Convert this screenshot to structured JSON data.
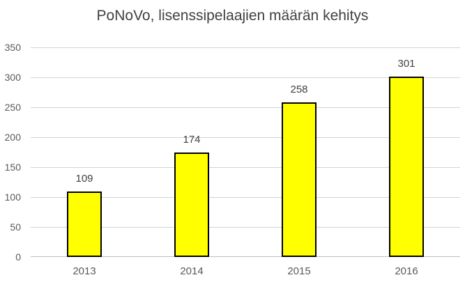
{
  "chart_data": {
    "type": "bar",
    "title": "PoNoVo, lisenssipelaajien määrän kehitys",
    "categories": [
      "2013",
      "2014",
      "2015",
      "2016"
    ],
    "values": [
      109,
      174,
      258,
      301
    ],
    "xlabel": "",
    "ylabel": "",
    "ylim": [
      0,
      350
    ],
    "yticks": [
      0,
      50,
      100,
      150,
      200,
      250,
      300,
      350
    ],
    "grid": true,
    "legend": false,
    "data_labels_shown": true,
    "colors": {
      "bar_fill": "#ffff00",
      "bar_border": "#000000",
      "gridline": "#ccd6cc",
      "axis_line": "#bfbfbf",
      "title_text": "#404040",
      "tick_text": "#595959",
      "background": "#ffffff"
    }
  }
}
